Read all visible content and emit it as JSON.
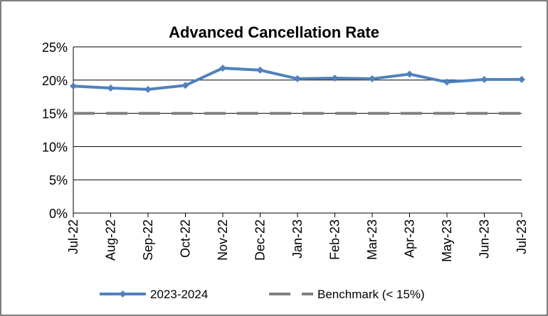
{
  "chart_data": {
    "type": "line",
    "title": "Advanced Cancellation Rate",
    "categories": [
      "Jul-22",
      "Aug-22",
      "Sep-22",
      "Oct-22",
      "Nov-22",
      "Dec-22",
      "Jan-23",
      "Feb-23",
      "Mar-23",
      "Apr-23",
      "May-23",
      "Jun-23",
      "Jul-23"
    ],
    "series": [
      {
        "name": "2023-2024",
        "color": "#4f81bd",
        "values": [
          19.1,
          18.8,
          18.6,
          19.2,
          21.8,
          21.5,
          20.2,
          20.3,
          20.2,
          20.9,
          19.7,
          20.1,
          20.1
        ]
      },
      {
        "name": "Benchmark (< 15%)",
        "color": "#808080",
        "dashed": true,
        "values": [
          15,
          15,
          15,
          15,
          15,
          15,
          15,
          15,
          15,
          15,
          15,
          15,
          15
        ]
      }
    ],
    "ylim": [
      0,
      25
    ],
    "yticks": [
      {
        "value": 0,
        "label": "0%"
      },
      {
        "value": 5,
        "label": "5%"
      },
      {
        "value": 10,
        "label": "10%"
      },
      {
        "value": 15,
        "label": "15%"
      },
      {
        "value": 20,
        "label": "20%"
      },
      {
        "value": 25,
        "label": "25%"
      }
    ],
    "grid": true,
    "legend": "bottom"
  }
}
